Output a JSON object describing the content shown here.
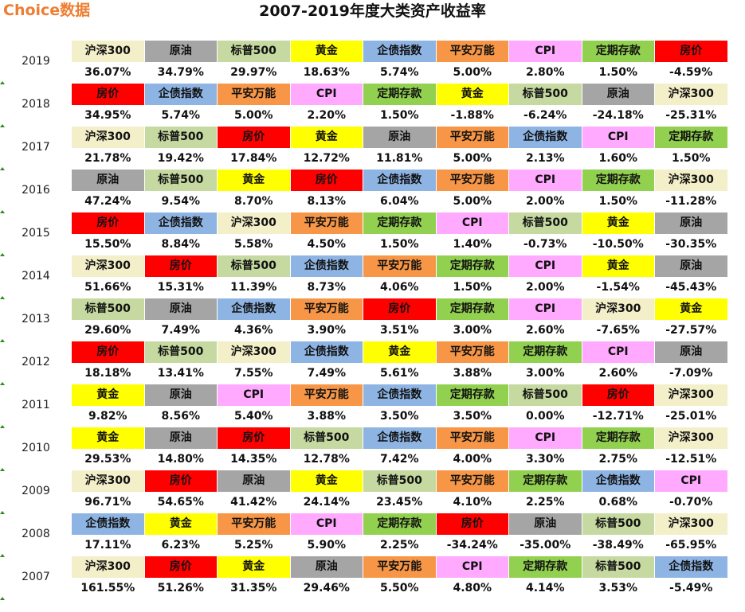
{
  "header": {
    "brand": "Choice数据",
    "title": "2007-2019年度大类资产收益率"
  },
  "asset_colors": {
    "沪深300": "#f3efc9",
    "原油": "#a5a5a5",
    "标普500": "#c5d9a0",
    "黄金": "#ffff00",
    "企债指数": "#8eb4e3",
    "平安万能": "#f79646",
    "CPI": "#ffaaff",
    "定期存款": "#92d050",
    "房价": "#ff0000"
  },
  "chart_data": {
    "type": "table",
    "title": "2007-2019年度大类资产收益率",
    "rows": [
      {
        "year": "2019",
        "cells": [
          {
            "asset": "沪深300",
            "value": "36.07%"
          },
          {
            "asset": "原油",
            "value": "34.79%"
          },
          {
            "asset": "标普500",
            "value": "29.97%"
          },
          {
            "asset": "黄金",
            "value": "18.63%"
          },
          {
            "asset": "企债指数",
            "value": "5.74%"
          },
          {
            "asset": "平安万能",
            "value": "5.00%"
          },
          {
            "asset": "CPI",
            "value": "2.80%"
          },
          {
            "asset": "定期存款",
            "value": "1.50%"
          },
          {
            "asset": "房价",
            "value": "-4.59%"
          }
        ]
      },
      {
        "year": "2018",
        "cells": [
          {
            "asset": "房价",
            "value": "34.95%"
          },
          {
            "asset": "企债指数",
            "value": "5.74%"
          },
          {
            "asset": "平安万能",
            "value": "5.00%"
          },
          {
            "asset": "CPI",
            "value": "2.20%"
          },
          {
            "asset": "定期存款",
            "value": "1.50%"
          },
          {
            "asset": "黄金",
            "value": "-1.88%"
          },
          {
            "asset": "标普500",
            "value": "-6.24%"
          },
          {
            "asset": "原油",
            "value": "-24.18%"
          },
          {
            "asset": "沪深300",
            "value": "-25.31%"
          }
        ]
      },
      {
        "year": "2017",
        "cells": [
          {
            "asset": "沪深300",
            "value": "21.78%"
          },
          {
            "asset": "标普500",
            "value": "19.42%"
          },
          {
            "asset": "房价",
            "value": "17.84%"
          },
          {
            "asset": "黄金",
            "value": "12.72%"
          },
          {
            "asset": "原油",
            "value": "11.81%"
          },
          {
            "asset": "平安万能",
            "value": "5.00%"
          },
          {
            "asset": "企债指数",
            "value": "2.13%"
          },
          {
            "asset": "CPI",
            "value": "1.60%"
          },
          {
            "asset": "定期存款",
            "value": "1.50%"
          }
        ]
      },
      {
        "year": "2016",
        "cells": [
          {
            "asset": "原油",
            "value": "47.24%"
          },
          {
            "asset": "标普500",
            "value": "9.54%"
          },
          {
            "asset": "黄金",
            "value": "8.70%"
          },
          {
            "asset": "房价",
            "value": "8.13%"
          },
          {
            "asset": "企债指数",
            "value": "6.04%"
          },
          {
            "asset": "平安万能",
            "value": "5.00%"
          },
          {
            "asset": "CPI",
            "value": "2.00%"
          },
          {
            "asset": "定期存款",
            "value": "1.50%"
          },
          {
            "asset": "沪深300",
            "value": "-11.28%"
          }
        ]
      },
      {
        "year": "2015",
        "cells": [
          {
            "asset": "房价",
            "value": "15.50%"
          },
          {
            "asset": "企债指数",
            "value": "8.84%"
          },
          {
            "asset": "沪深300",
            "value": "5.58%"
          },
          {
            "asset": "平安万能",
            "value": "4.50%"
          },
          {
            "asset": "定期存款",
            "value": "1.50%"
          },
          {
            "asset": "CPI",
            "value": "1.40%"
          },
          {
            "asset": "标普500",
            "value": "-0.73%"
          },
          {
            "asset": "黄金",
            "value": "-10.50%"
          },
          {
            "asset": "原油",
            "value": "-30.35%"
          }
        ]
      },
      {
        "year": "2014",
        "cells": [
          {
            "asset": "沪深300",
            "value": "51.66%"
          },
          {
            "asset": "房价",
            "value": "15.31%"
          },
          {
            "asset": "标普500",
            "value": "11.39%"
          },
          {
            "asset": "企债指数",
            "value": "8.73%"
          },
          {
            "asset": "平安万能",
            "value": "4.06%"
          },
          {
            "asset": "定期存款",
            "value": "1.50%"
          },
          {
            "asset": "CPI",
            "value": "2.00%"
          },
          {
            "asset": "黄金",
            "value": "-1.54%"
          },
          {
            "asset": "原油",
            "value": "-45.43%"
          }
        ]
      },
      {
        "year": "2013",
        "cells": [
          {
            "asset": "标普500",
            "value": "29.60%"
          },
          {
            "asset": "原油",
            "value": "7.49%"
          },
          {
            "asset": "企债指数",
            "value": "4.36%"
          },
          {
            "asset": "平安万能",
            "value": "3.90%"
          },
          {
            "asset": "房价",
            "value": "3.51%"
          },
          {
            "asset": "定期存款",
            "value": "3.00%"
          },
          {
            "asset": "CPI",
            "value": "2.60%"
          },
          {
            "asset": "沪深300",
            "value": "-7.65%"
          },
          {
            "asset": "黄金",
            "value": "-27.57%"
          }
        ]
      },
      {
        "year": "2012",
        "cells": [
          {
            "asset": "房价",
            "value": "18.18%"
          },
          {
            "asset": "标普500",
            "value": "13.41%"
          },
          {
            "asset": "沪深300",
            "value": "7.55%"
          },
          {
            "asset": "企债指数",
            "value": "7.49%"
          },
          {
            "asset": "黄金",
            "value": "5.61%"
          },
          {
            "asset": "平安万能",
            "value": "3.88%"
          },
          {
            "asset": "定期存款",
            "value": "3.00%"
          },
          {
            "asset": "CPI",
            "value": "2.60%"
          },
          {
            "asset": "原油",
            "value": "-7.09%"
          }
        ]
      },
      {
        "year": "2011",
        "cells": [
          {
            "asset": "黄金",
            "value": "9.82%"
          },
          {
            "asset": "原油",
            "value": "8.56%"
          },
          {
            "asset": "CPI",
            "value": "5.40%"
          },
          {
            "asset": "平安万能",
            "value": "3.88%"
          },
          {
            "asset": "企债指数",
            "value": "3.50%"
          },
          {
            "asset": "定期存款",
            "value": "3.50%"
          },
          {
            "asset": "标普500",
            "value": "0.00%"
          },
          {
            "asset": "房价",
            "value": "-12.71%"
          },
          {
            "asset": "沪深300",
            "value": "-25.01%"
          }
        ]
      },
      {
        "year": "2010",
        "cells": [
          {
            "asset": "黄金",
            "value": "29.53%"
          },
          {
            "asset": "原油",
            "value": "14.80%"
          },
          {
            "asset": "房价",
            "value": "14.35%"
          },
          {
            "asset": "标普500",
            "value": "12.78%"
          },
          {
            "asset": "企债指数",
            "value": "7.42%"
          },
          {
            "asset": "平安万能",
            "value": "4.00%"
          },
          {
            "asset": "CPI",
            "value": "3.30%"
          },
          {
            "asset": "定期存款",
            "value": "2.75%"
          },
          {
            "asset": "沪深300",
            "value": "-12.51%"
          }
        ]
      },
      {
        "year": "2009",
        "cells": [
          {
            "asset": "沪深300",
            "value": "96.71%"
          },
          {
            "asset": "房价",
            "value": "54.65%"
          },
          {
            "asset": "原油",
            "value": "41.42%"
          },
          {
            "asset": "黄金",
            "value": "24.14%"
          },
          {
            "asset": "标普500",
            "value": "23.45%"
          },
          {
            "asset": "平安万能",
            "value": "4.10%"
          },
          {
            "asset": "定期存款",
            "value": "2.25%"
          },
          {
            "asset": "企债指数",
            "value": "0.68%"
          },
          {
            "asset": "CPI",
            "value": "-0.70%"
          }
        ]
      },
      {
        "year": "2008",
        "cells": [
          {
            "asset": "企债指数",
            "value": "17.11%"
          },
          {
            "asset": "黄金",
            "value": "6.23%"
          },
          {
            "asset": "平安万能",
            "value": "5.25%"
          },
          {
            "asset": "CPI",
            "value": "5.90%"
          },
          {
            "asset": "定期存款",
            "value": "2.25%"
          },
          {
            "asset": "房价",
            "value": "-34.24%"
          },
          {
            "asset": "原油",
            "value": "-35.00%"
          },
          {
            "asset": "标普500",
            "value": "-38.49%"
          },
          {
            "asset": "沪深300",
            "value": "-65.95%"
          }
        ]
      },
      {
        "year": "2007",
        "cells": [
          {
            "asset": "沪深300",
            "value": "161.55%"
          },
          {
            "asset": "房价",
            "value": "51.26%"
          },
          {
            "asset": "黄金",
            "value": "31.35%"
          },
          {
            "asset": "原油",
            "value": "29.46%"
          },
          {
            "asset": "平安万能",
            "value": "5.50%"
          },
          {
            "asset": "CPI",
            "value": "4.80%"
          },
          {
            "asset": "定期存款",
            "value": "4.14%"
          },
          {
            "asset": "标普500",
            "value": "3.53%"
          },
          {
            "asset": "企债指数",
            "value": "-5.49%"
          }
        ]
      }
    ]
  }
}
